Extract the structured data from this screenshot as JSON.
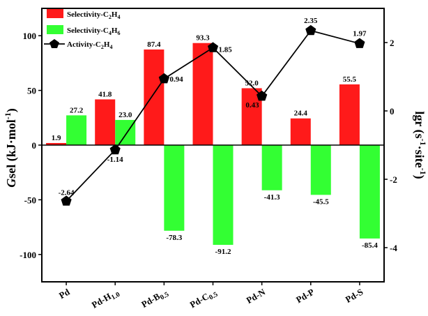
{
  "chart_data": {
    "type": "bar+line",
    "categories": [
      "Pd",
      "Pd-H1.0",
      "Pd-B0.5",
      "Pd-C0.5",
      "Pd-N",
      "Pd-P",
      "Pd-S"
    ],
    "category_labels": [
      {
        "main": "Pd",
        "sub": ""
      },
      {
        "main": "Pd-H",
        "sub": "1.0"
      },
      {
        "main": "Pd-B",
        "sub": "0.5"
      },
      {
        "main": "Pd-C",
        "sub": "0.5"
      },
      {
        "main": "Pd-N",
        "sub": ""
      },
      {
        "main": "Pd-P",
        "sub": ""
      },
      {
        "main": "Pd-S",
        "sub": ""
      }
    ],
    "series": [
      {
        "name": "Selectivity-C2H4",
        "legend": {
          "text": "Selectivity-C",
          "s1": "2",
          "m": "H",
          "s2": "4"
        },
        "type": "bar",
        "axis": "left",
        "color": "#ff1a1a",
        "values": [
          1.9,
          41.8,
          87.4,
          93.3,
          52.0,
          24.4,
          55.5
        ],
        "labels": [
          "1.9",
          "41.8",
          "87.4",
          "93.3",
          "52.0",
          "24.4",
          "55.5"
        ]
      },
      {
        "name": "Selectivity-C4H6",
        "legend": {
          "text": "Selectivity-C",
          "s1": "4",
          "m": "H",
          "s2": "6"
        },
        "type": "bar",
        "axis": "left",
        "color": "#33ff33",
        "values": [
          27.2,
          23.0,
          -78.3,
          -91.2,
          -41.3,
          -45.5,
          -85.4
        ],
        "labels": [
          "27.2",
          "23.0",
          "-78.3",
          "-91.2",
          "-41.3",
          "-45.5",
          "-85.4"
        ]
      },
      {
        "name": "Activity-C2H4",
        "legend": {
          "text": "Activity-C",
          "s1": "2",
          "m": "H",
          "s2": "4"
        },
        "type": "line",
        "axis": "right",
        "color": "#000000",
        "values": [
          -2.64,
          -1.14,
          0.94,
          1.85,
          0.43,
          2.35,
          1.97
        ],
        "labels": [
          "-2.64",
          "-1.14",
          "0.94",
          "1.85",
          "0.43",
          "2.35",
          "1.97"
        ]
      }
    ],
    "left_axis": {
      "label_italic": "G",
      "label_rest": "sel (kJ·mol",
      "label_sup": "-1",
      "label_end": ")",
      "ylim": [
        -125,
        125
      ],
      "ticks": [
        100,
        50,
        0,
        -50,
        -100
      ],
      "tick_labels": [
        "100",
        "50",
        "0",
        "-50",
        "-100"
      ]
    },
    "right_axis": {
      "label_main": "lgr (s",
      "label_sup1": "-1",
      "label_mid": "·site",
      "label_sup2": "-1",
      "label_end": ")",
      "ylim": [
        -5.0,
        3.0
      ],
      "ticks": [
        2,
        0,
        -2,
        -4
      ],
      "tick_labels": [
        "2",
        "0",
        "-2",
        "-4"
      ]
    },
    "legend_position": "top-left"
  }
}
